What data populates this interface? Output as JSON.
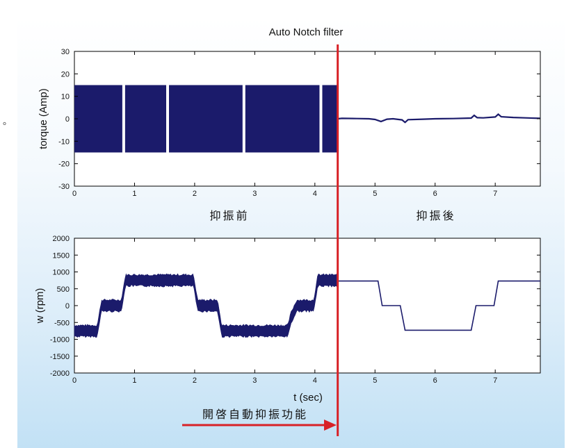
{
  "side_mark": "。",
  "chart_data": [
    {
      "type": "line",
      "title": "Auto Notch filter",
      "xlabel": "",
      "ylabel": "torque (Amp)",
      "xlim": [
        0,
        7.75
      ],
      "ylim": [
        -30,
        30
      ],
      "xticks": [
        0,
        1,
        2,
        3,
        4,
        5,
        6,
        7
      ],
      "yticks": [
        30,
        20,
        10,
        0,
        -10,
        -20,
        -30
      ],
      "grid": false,
      "color": "#1b1b6b",
      "band": {
        "x_start": 0,
        "x_end": 4.38,
        "upper": 15,
        "lower": -15,
        "gaps": [
          0.82,
          1.55,
          2.82,
          4.1
        ]
      },
      "series_after": {
        "x": [
          4.38,
          4.45,
          4.7,
          4.9,
          5.0,
          5.1,
          5.2,
          5.3,
          5.45,
          5.5,
          5.55,
          5.8,
          6.0,
          6.3,
          6.6,
          6.65,
          6.7,
          6.8,
          7.0,
          7.05,
          7.1,
          7.3,
          7.5,
          7.75
        ],
        "y": [
          0,
          0.2,
          0.1,
          0,
          -0.3,
          -1.2,
          -0.2,
          0,
          -0.5,
          -1.6,
          -0.4,
          -0.2,
          0,
          0.1,
          0.3,
          1.5,
          0.5,
          0.4,
          0.8,
          2.0,
          0.9,
          0.6,
          0.4,
          0.2
        ]
      },
      "annotations": [
        "抑振前",
        "抑振後"
      ]
    },
    {
      "type": "line",
      "title": "",
      "xlabel": "t (sec)",
      "ylabel": "w (rpm)",
      "xlim": [
        0,
        7.75
      ],
      "ylim": [
        -2000,
        2000
      ],
      "xticks": [
        0,
        1,
        2,
        3,
        4,
        5,
        6,
        7
      ],
      "yticks": [
        2000,
        1500,
        1000,
        500,
        0,
        -500,
        -1000,
        -1500,
        -2000
      ],
      "grid": false,
      "color": "#1b1b6b",
      "series_before": {
        "x": [
          0,
          0.38,
          0.45,
          0.78,
          0.85,
          1.0,
          1.5,
          1.98,
          2.05,
          2.38,
          2.45,
          2.8,
          3.5,
          3.55,
          3.6,
          3.7,
          3.98,
          4.05,
          4.38
        ],
        "y": [
          -750,
          -750,
          0,
          0,
          750,
          750,
          750,
          750,
          0,
          0,
          -750,
          -750,
          -750,
          -750,
          -375,
          0,
          0,
          750,
          750
        ],
        "noise": 180
      },
      "series_after": {
        "x": [
          4.38,
          4.7,
          5.05,
          5.12,
          5.42,
          5.5,
          6.6,
          6.68,
          6.98,
          7.05,
          7.75
        ],
        "y": [
          730,
          730,
          730,
          0,
          0,
          -730,
          -730,
          0,
          0,
          730,
          730
        ]
      },
      "annotation": "開啓自動抑振功能"
    }
  ],
  "divider": {
    "x": 4.38,
    "color": "#d82127"
  }
}
